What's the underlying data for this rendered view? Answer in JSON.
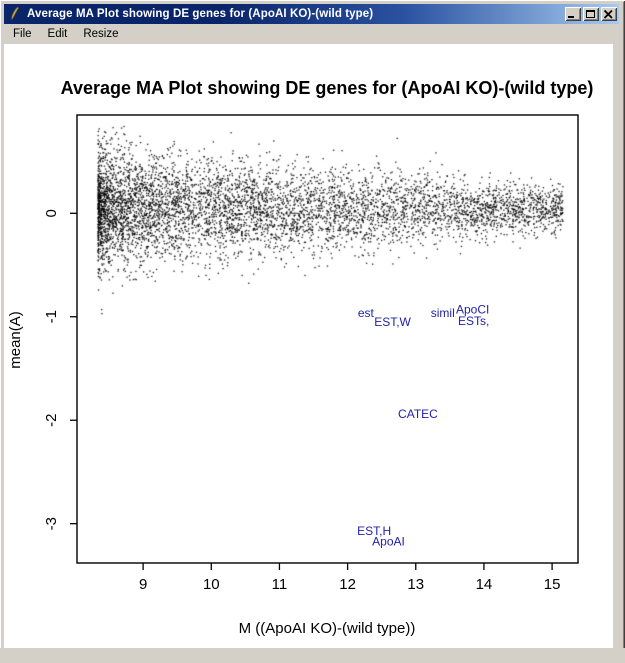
{
  "window": {
    "title": "Average MA Plot showing DE genes for (ApoAI KO)-(wild type)",
    "icon": "quill-chart-icon",
    "menu": [
      {
        "label": "File"
      },
      {
        "label": "Edit"
      },
      {
        "label": "Resize"
      }
    ],
    "controls": {
      "minimize": "minimize-icon",
      "maximize": "maximize-icon",
      "close": "close-icon"
    },
    "chrome_colors": {
      "titlebar_left": "#0a246a",
      "titlebar_right": "#a6caf0",
      "frame": "#d4d0c8"
    }
  },
  "chart_data": {
    "type": "scatter",
    "title": "Average MA Plot showing DE genes for (ApoAI KO)-(wild type)",
    "xlabel": "M ((ApoAI KO)-(wild type))",
    "ylabel": "mean(A)",
    "xlim": [
      8.03,
      15.38
    ],
    "ylim": [
      -3.38,
      0.95
    ],
    "xticks": [
      9,
      10,
      11,
      12,
      13,
      14,
      15
    ],
    "yticks": [
      0,
      -1,
      -2,
      -3
    ],
    "grid": false,
    "point_color": "#000000",
    "label_color": "#2222aa",
    "cloud": {
      "description": "MA-plot funnel cloud of non-DE genes centered near mean(A)=0, dense at low M tapering toward M=15",
      "n": 6000,
      "seed": 42,
      "x_min": 8.33,
      "x_max": 15.15,
      "x_skew": 1.7,
      "y_mean": 0.05,
      "sd_left": 0.29,
      "sd_right": 0.11
    },
    "de_gene_labels": [
      {
        "text": "est",
        "x": 12.15,
        "y": -1.0
      },
      {
        "text": "EST,W",
        "x": 12.39,
        "y": -1.09
      },
      {
        "text": "simil",
        "x": 13.22,
        "y": -1.0
      },
      {
        "text": "ApoCI",
        "x": 13.59,
        "y": -0.97
      },
      {
        "text": "ESTs,",
        "x": 13.62,
        "y": -1.08
      },
      {
        "text": "CATEC",
        "x": 12.74,
        "y": -1.98
      },
      {
        "text": "EST,H",
        "x": 12.14,
        "y": -3.11
      },
      {
        "text": "ApoAI",
        "x": 12.36,
        "y": -3.21
      }
    ]
  }
}
